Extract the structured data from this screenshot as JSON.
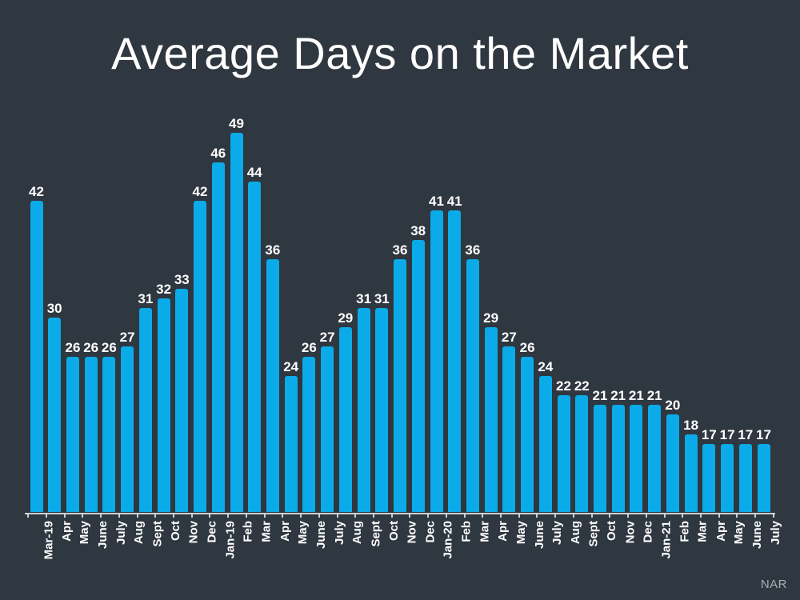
{
  "chart_data": {
    "type": "bar",
    "title": "Average Days on the Market",
    "xlabel": "",
    "ylabel": "",
    "categories": [
      "Mar-19",
      "Apr",
      "May",
      "June",
      "July",
      "Aug",
      "Sept",
      "Oct",
      "Nov",
      "Dec",
      "Jan-19",
      "Feb",
      "Mar",
      "Apr",
      "May",
      "June",
      "July",
      "Aug",
      "Sept",
      "Oct",
      "Nov",
      "Dec",
      "Jan-20",
      "Feb",
      "Mar",
      "Apr",
      "May",
      "June",
      "July",
      "Aug",
      "Sept",
      "Oct",
      "Nov",
      "Dec",
      "Jan-21",
      "Feb",
      "Mar",
      "Apr",
      "May",
      "June",
      "July"
    ],
    "values": [
      42,
      30,
      26,
      26,
      26,
      27,
      31,
      32,
      33,
      42,
      46,
      49,
      44,
      36,
      24,
      26,
      27,
      29,
      31,
      31,
      36,
      38,
      41,
      41,
      36,
      29,
      27,
      26,
      24,
      22,
      22,
      21,
      21,
      21,
      21,
      20,
      18,
      17,
      17,
      17,
      17
    ],
    "value_labels": true,
    "ylim": [
      10,
      52
    ],
    "grid": false,
    "legend": false,
    "source_label": "NAR",
    "colors": {
      "background": "#2f3740",
      "bar": "#0aabe8",
      "text": "#ffffff",
      "axis": "#ccd1d6",
      "source_text": "#a9aeb3"
    }
  }
}
